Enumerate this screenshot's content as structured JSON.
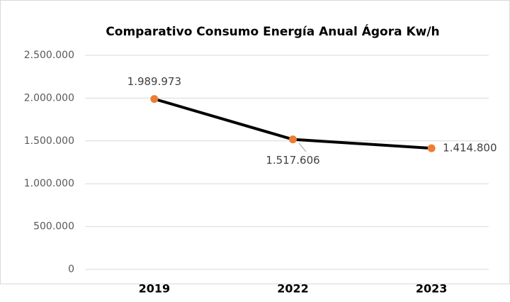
{
  "chart_data": {
    "type": "line",
    "title": "Comparativo Consumo Energía Anual Ágora Kw/h",
    "categories": [
      "2019",
      "2022",
      "2023"
    ],
    "values": [
      1989973,
      1517606,
      1414800
    ],
    "value_labels": [
      "1.989.973",
      "1.517.606",
      "1.414.800"
    ],
    "color": "#000000",
    "marker_color": "#ed7d31",
    "ylim": [
      0,
      2500000
    ],
    "yticks": [
      0,
      {
        "value": 500000,
        "label": "500.000"
      },
      {
        "value": 1000000,
        "label": "1.000.000"
      },
      {
        "value": 1500000,
        "label": "1.500.000"
      },
      {
        "value": 2000000,
        "label": "2.000.000"
      },
      {
        "value": 2500000,
        "label": "2.500.000"
      }
    ],
    "grid": true
  }
}
